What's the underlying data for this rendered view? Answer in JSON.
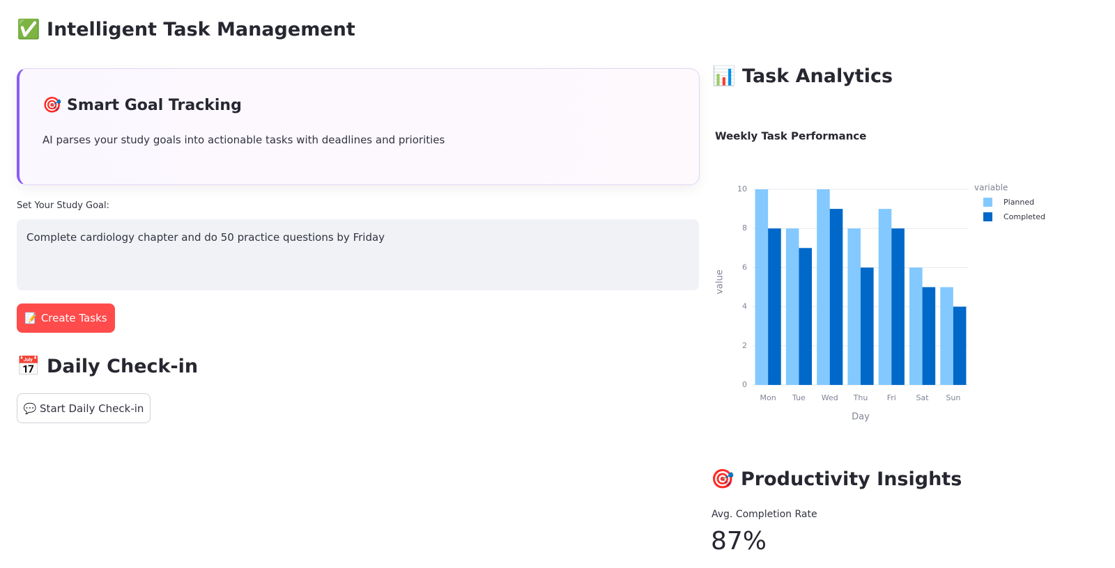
{
  "header": {
    "title": "✅ Intelligent Task Management"
  },
  "card": {
    "title": "🎯 Smart Goal Tracking",
    "text": "AI parses your study goals into actionable tasks with deadlines and priorities"
  },
  "goal_input": {
    "label": "Set Your Study Goal:",
    "value": "Complete cardiology chapter and do 50 practice questions by Friday"
  },
  "create_button": "📝 Create Tasks",
  "checkin": {
    "title": "📅 Daily Check-in",
    "button": "💬 Start Daily Check-in"
  },
  "analytics": {
    "title": "📊 Task Analytics"
  },
  "insights": {
    "title": "🎯 Productivity Insights",
    "metric_label": "Avg. Completion Rate",
    "metric_value": "87%"
  },
  "chart_data": {
    "type": "bar",
    "title": "Weekly Task Performance",
    "x_label": "Day",
    "y_label": "value",
    "legend_title": "variable",
    "categories": [
      "Mon",
      "Tue",
      "Wed",
      "Thu",
      "Fri",
      "Sat",
      "Sun"
    ],
    "series": [
      {
        "name": "Planned",
        "color": "#83c9ff",
        "values": [
          10,
          8,
          10,
          8,
          9,
          6,
          5
        ]
      },
      {
        "name": "Completed",
        "color": "#0068c9",
        "values": [
          8,
          7,
          9,
          6,
          8,
          5,
          4
        ]
      }
    ],
    "ylim": [
      0,
      10
    ],
    "yticks": [
      0,
      2,
      4,
      6,
      8,
      10
    ],
    "grid": true,
    "legend": "right"
  }
}
